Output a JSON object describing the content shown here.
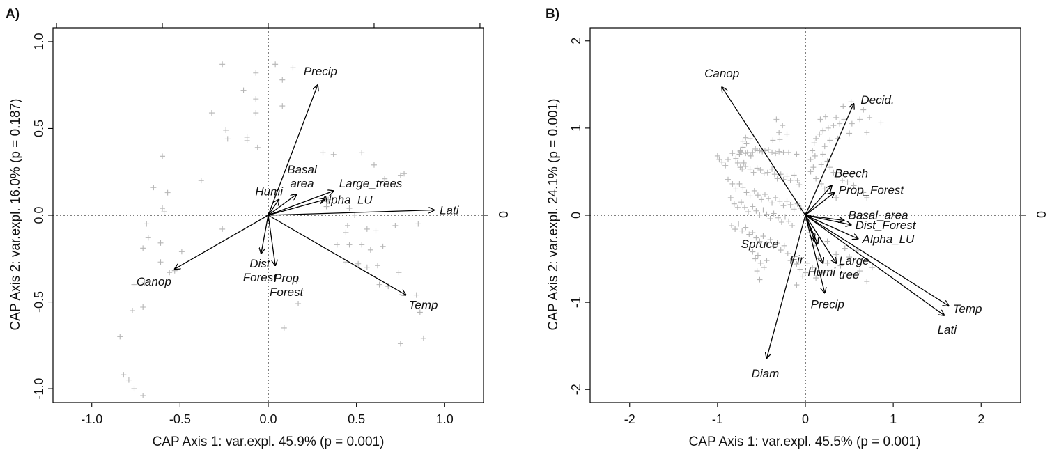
{
  "panels": [
    {
      "letter": "A)",
      "xlabel": "CAP Axis 1: var.expl. 45.9% (p = 0.001)",
      "ylabel": "CAP Axis 2: var.expl. 16.0% (p = 0.187)",
      "right_label": "0",
      "xlim": [
        -1.22,
        1.22
      ],
      "ylim": [
        -1.08,
        1.08
      ],
      "xticks": [
        -1.0,
        -0.5,
        0.0,
        0.5,
        1.0
      ],
      "xtick_labels": [
        "-1.0",
        "-0.5",
        "0.0",
        "0.5",
        "1.0"
      ],
      "yticks": [
        -1.0,
        -0.5,
        0.0,
        0.5,
        1.0
      ],
      "ytick_labels": [
        "-1.0",
        "-0.5",
        "0.0",
        "0.5",
        "1.0"
      ],
      "top_ticks": [
        -1.2,
        -0.6,
        0.0,
        0.6,
        1.2
      ]
    },
    {
      "letter": "B)",
      "xlabel": "CAP Axis 1: var.expl. 45.5% (p = 0.001)",
      "ylabel": "CAP Axis 2: var.expl. 24.1% (p = 0.001)",
      "right_label": "0",
      "xlim": [
        -2.45,
        2.45
      ],
      "ylim": [
        -2.15,
        2.15
      ],
      "xticks": [
        -2,
        -1,
        0,
        1,
        2
      ],
      "xtick_labels": [
        "-2",
        "-1",
        "0",
        "1",
        "2"
      ],
      "yticks": [
        -2,
        -1,
        0,
        1,
        2
      ],
      "ytick_labels": [
        "-2",
        "-1",
        "0",
        "1",
        "2"
      ],
      "top_ticks": []
    }
  ],
  "chart_data": [
    {
      "type": "scatter",
      "title": "",
      "xlabel": "CAP Axis 1: var.expl. 45.9% (p = 0.001)",
      "ylabel": "CAP Axis 2: var.expl. 16.0% (p = 0.187)",
      "xlim": [
        -1.22,
        1.22
      ],
      "ylim": [
        -1.08,
        1.08
      ],
      "grid": false,
      "reference_lines": {
        "x": 0,
        "y": 0
      },
      "point_color": "#b5b5b5",
      "points": [
        [
          -0.26,
          0.87
        ],
        [
          -0.07,
          0.82
        ],
        [
          0.04,
          0.87
        ],
        [
          0.14,
          0.85
        ],
        [
          0.08,
          0.78
        ],
        [
          -0.14,
          0.72
        ],
        [
          -0.07,
          0.67
        ],
        [
          0.08,
          0.63
        ],
        [
          -0.32,
          0.59
        ],
        [
          -0.07,
          0.59
        ],
        [
          -0.24,
          0.49
        ],
        [
          -0.12,
          0.45
        ],
        [
          -0.23,
          0.44
        ],
        [
          -0.12,
          0.43
        ],
        [
          -0.06,
          0.39
        ],
        [
          -0.6,
          0.34
        ],
        [
          -0.38,
          0.2
        ],
        [
          -0.65,
          0.16
        ],
        [
          -0.57,
          0.13
        ],
        [
          -0.6,
          0.04
        ],
        [
          -0.59,
          0.02
        ],
        [
          -0.69,
          -0.05
        ],
        [
          -0.68,
          -0.13
        ],
        [
          -0.26,
          -0.08
        ],
        [
          -0.61,
          -0.16
        ],
        [
          -0.71,
          -0.19
        ],
        [
          -0.49,
          -0.21
        ],
        [
          -0.61,
          -0.27
        ],
        [
          -0.53,
          -0.32
        ],
        [
          -0.56,
          -0.33
        ],
        [
          -0.7,
          -0.39
        ],
        [
          -0.76,
          -0.4
        ],
        [
          -0.71,
          -0.53
        ],
        [
          -0.77,
          -0.55
        ],
        [
          -0.84,
          -0.7
        ],
        [
          -0.82,
          -0.92
        ],
        [
          -0.79,
          -0.95
        ],
        [
          -0.76,
          -1.0
        ],
        [
          -0.71,
          -1.04
        ],
        [
          0.31,
          0.36
        ],
        [
          0.37,
          0.35
        ],
        [
          0.53,
          0.36
        ],
        [
          0.6,
          0.29
        ],
        [
          0.66,
          0.21
        ],
        [
          0.75,
          0.23
        ],
        [
          0.77,
          0.24
        ],
        [
          0.34,
          0.09
        ],
        [
          0.46,
          0.04
        ],
        [
          0.49,
          0.0
        ],
        [
          0.33,
          0.05
        ],
        [
          0.72,
          -0.06
        ],
        [
          0.85,
          -0.05
        ],
        [
          0.44,
          -0.1
        ],
        [
          0.45,
          -0.06
        ],
        [
          0.56,
          -0.08
        ],
        [
          0.61,
          -0.09
        ],
        [
          0.39,
          -0.17
        ],
        [
          0.46,
          -0.17
        ],
        [
          0.53,
          -0.17
        ],
        [
          0.65,
          -0.18
        ],
        [
          0.58,
          -0.2
        ],
        [
          0.44,
          -0.27
        ],
        [
          0.51,
          -0.28
        ],
        [
          0.56,
          -0.3
        ],
        [
          0.62,
          -0.29
        ],
        [
          0.74,
          -0.33
        ],
        [
          0.63,
          -0.4
        ],
        [
          0.68,
          -0.41
        ],
        [
          0.75,
          -0.74
        ],
        [
          0.88,
          -0.71
        ],
        [
          0.86,
          -0.56
        ],
        [
          0.84,
          -0.46
        ],
        [
          0.16,
          -0.38
        ],
        [
          0.17,
          -0.51
        ],
        [
          0.09,
          -0.65
        ]
      ],
      "vectors": [
        {
          "label": "Precip",
          "x": 0.28,
          "y": 0.75
        },
        {
          "label": "Humi",
          "x": 0.06,
          "y": 0.09
        },
        {
          "label": "Basal area",
          "x": 0.16,
          "y": 0.12
        },
        {
          "label": "Large_trees",
          "x": 0.37,
          "y": 0.14
        },
        {
          "label": "Alpha_LU",
          "x": 0.32,
          "y": 0.09
        },
        {
          "label": "Lati",
          "x": 0.94,
          "y": 0.03
        },
        {
          "label": "Temp",
          "x": 0.78,
          "y": -0.46
        },
        {
          "label": "Canop",
          "x": -0.53,
          "y": -0.31
        },
        {
          "label": "Dist Forest",
          "x": -0.04,
          "y": -0.22
        },
        {
          "label": "Prop Forest",
          "x": 0.04,
          "y": -0.29
        }
      ]
    },
    {
      "type": "scatter",
      "title": "",
      "xlabel": "CAP Axis 1: var.expl. 45.5% (p = 0.001)",
      "ylabel": "CAP Axis 2: var.expl. 24.1% (p = 0.001)",
      "xlim": [
        -2.45,
        2.45
      ],
      "ylim": [
        -2.15,
        2.15
      ],
      "grid": false,
      "reference_lines": {
        "x": 0,
        "y": 0
      },
      "point_color": "#b5b5b5",
      "points": [
        [
          -0.33,
          1.1
        ],
        [
          -0.26,
          1.03
        ],
        [
          -0.3,
          0.95
        ],
        [
          -0.21,
          0.93
        ],
        [
          -0.29,
          0.87
        ],
        [
          -0.37,
          0.86
        ],
        [
          -0.68,
          0.89
        ],
        [
          -0.63,
          0.88
        ],
        [
          -0.71,
          0.85
        ],
        [
          -0.67,
          0.82
        ],
        [
          -0.71,
          0.78
        ],
        [
          -0.74,
          0.74
        ],
        [
          -0.74,
          0.73
        ],
        [
          -0.73,
          0.72
        ],
        [
          -0.75,
          0.7
        ],
        [
          -0.66,
          0.72
        ],
        [
          -0.68,
          0.71
        ],
        [
          -0.63,
          0.69
        ],
        [
          -0.62,
          0.68
        ],
        [
          -0.6,
          0.72
        ],
        [
          -0.57,
          0.76
        ],
        [
          -0.55,
          0.74
        ],
        [
          -0.52,
          0.74
        ],
        [
          -0.49,
          0.73
        ],
        [
          -0.46,
          0.74
        ],
        [
          -0.42,
          0.75
        ],
        [
          -0.38,
          0.72
        ],
        [
          -0.34,
          0.71
        ],
        [
          -0.3,
          0.73
        ],
        [
          -0.25,
          0.72
        ],
        [
          -0.19,
          0.72
        ],
        [
          -0.1,
          0.7
        ],
        [
          -1.0,
          0.68
        ],
        [
          -0.98,
          0.64
        ],
        [
          -0.95,
          0.61
        ],
        [
          -0.91,
          0.57
        ],
        [
          -0.88,
          0.64
        ],
        [
          -0.83,
          0.71
        ],
        [
          -0.79,
          0.65
        ],
        [
          -0.77,
          0.6
        ],
        [
          -0.74,
          0.55
        ],
        [
          -0.72,
          0.53
        ],
        [
          -0.7,
          0.6
        ],
        [
          -0.68,
          0.56
        ],
        [
          -0.63,
          0.53
        ],
        [
          -0.59,
          0.49
        ],
        [
          -0.55,
          0.54
        ],
        [
          -0.51,
          0.52
        ],
        [
          -0.47,
          0.48
        ],
        [
          -0.43,
          0.49
        ],
        [
          -0.38,
          0.53
        ],
        [
          -0.35,
          0.47
        ],
        [
          -0.32,
          0.42
        ],
        [
          -0.28,
          0.47
        ],
        [
          -0.25,
          0.41
        ],
        [
          -0.21,
          0.45
        ],
        [
          -0.17,
          0.4
        ],
        [
          -0.13,
          0.46
        ],
        [
          -0.09,
          0.4
        ],
        [
          -0.07,
          0.35
        ],
        [
          -0.88,
          0.41
        ],
        [
          -0.83,
          0.36
        ],
        [
          -0.79,
          0.3
        ],
        [
          -0.75,
          0.36
        ],
        [
          -0.71,
          0.32
        ],
        [
          -0.67,
          0.26
        ],
        [
          -0.63,
          0.22
        ],
        [
          -0.58,
          0.28
        ],
        [
          -0.54,
          0.23
        ],
        [
          -0.5,
          0.18
        ],
        [
          -0.46,
          0.24
        ],
        [
          -0.42,
          0.19
        ],
        [
          -0.38,
          0.14
        ],
        [
          -0.34,
          0.2
        ],
        [
          -0.29,
          0.16
        ],
        [
          -0.25,
          0.11
        ],
        [
          -0.21,
          0.16
        ],
        [
          -0.17,
          0.12
        ],
        [
          -0.13,
          0.07
        ],
        [
          -0.09,
          0.13
        ],
        [
          -0.05,
          0.08
        ],
        [
          -0.85,
          0.2
        ],
        [
          -0.81,
          0.13
        ],
        [
          -0.77,
          0.09
        ],
        [
          -0.73,
          0.15
        ],
        [
          -0.69,
          0.09
        ],
        [
          -0.65,
          0.04
        ],
        [
          -0.6,
          0.1
        ],
        [
          -0.56,
          0.05
        ],
        [
          -0.52,
          0.0
        ],
        [
          -0.48,
          0.06
        ],
        [
          -0.44,
          0.01
        ],
        [
          -0.4,
          -0.04
        ],
        [
          -0.36,
          0.02
        ],
        [
          -0.31,
          -0.03
        ],
        [
          -0.27,
          -0.08
        ],
        [
          -0.23,
          -0.02
        ],
        [
          -0.19,
          -0.07
        ],
        [
          -0.15,
          -0.12
        ],
        [
          -0.84,
          -0.12
        ],
        [
          -0.8,
          -0.16
        ],
        [
          -0.76,
          -0.1
        ],
        [
          -0.72,
          -0.18
        ],
        [
          -0.68,
          -0.14
        ],
        [
          -0.64,
          -0.22
        ],
        [
          -0.6,
          -0.2
        ],
        [
          -0.56,
          -0.26
        ],
        [
          -0.52,
          -0.3
        ],
        [
          -0.48,
          -0.24
        ],
        [
          -0.44,
          -0.33
        ],
        [
          -0.4,
          -0.28
        ],
        [
          -0.36,
          -0.36
        ],
        [
          -0.32,
          -0.32
        ],
        [
          -0.28,
          -0.4
        ],
        [
          -0.24,
          -0.35
        ],
        [
          -0.6,
          -0.42
        ],
        [
          -0.57,
          -0.5
        ],
        [
          -0.54,
          -0.46
        ],
        [
          -0.51,
          -0.55
        ],
        [
          -0.47,
          -0.6
        ],
        [
          -0.44,
          -0.52
        ],
        [
          -0.2,
          -0.44
        ],
        [
          -0.17,
          -0.52
        ],
        [
          -0.13,
          -0.47
        ],
        [
          -0.1,
          -0.56
        ],
        [
          -0.06,
          -0.62
        ],
        [
          -0.03,
          -0.7
        ],
        [
          0.0,
          -0.66
        ],
        [
          -0.55,
          -0.64
        ],
        [
          -0.52,
          -0.74
        ],
        [
          -0.1,
          -0.8
        ],
        [
          0.52,
          1.3
        ],
        [
          0.66,
          1.21
        ],
        [
          0.43,
          1.25
        ],
        [
          0.73,
          1.12
        ],
        [
          0.86,
          1.06
        ],
        [
          0.62,
          1.1
        ],
        [
          0.44,
          1.1
        ],
        [
          0.35,
          1.12
        ],
        [
          0.23,
          1.13
        ],
        [
          0.17,
          1.1
        ],
        [
          0.53,
          1.05
        ],
        [
          0.39,
          1.05
        ],
        [
          0.32,
          1.03
        ],
        [
          0.26,
          1.0
        ],
        [
          0.2,
          0.97
        ],
        [
          0.16,
          0.93
        ],
        [
          0.12,
          0.88
        ],
        [
          0.1,
          0.83
        ],
        [
          0.28,
          0.86
        ],
        [
          0.22,
          0.79
        ],
        [
          0.7,
          0.95
        ],
        [
          0.5,
          0.94
        ],
        [
          0.37,
          0.88
        ],
        [
          0.08,
          0.74
        ],
        [
          0.11,
          0.68
        ],
        [
          0.06,
          0.64
        ],
        [
          0.09,
          0.55
        ],
        [
          0.06,
          0.5
        ],
        [
          0.2,
          0.7
        ],
        [
          0.25,
          0.62
        ],
        [
          0.18,
          0.58
        ],
        [
          0.28,
          0.55
        ],
        [
          0.32,
          0.49
        ],
        [
          0.36,
          0.44
        ],
        [
          0.42,
          0.4
        ],
        [
          0.48,
          0.38
        ],
        [
          0.55,
          0.34
        ],
        [
          0.6,
          0.3
        ],
        [
          0.66,
          0.26
        ],
        [
          0.7,
          0.2
        ],
        [
          0.12,
          0.42
        ],
        [
          0.18,
          0.36
        ],
        [
          0.22,
          0.3
        ],
        [
          0.28,
          0.25
        ],
        [
          0.35,
          0.2
        ],
        [
          0.05,
          -0.2
        ],
        [
          0.1,
          -0.35
        ],
        [
          0.15,
          -0.5
        ],
        [
          0.25,
          -0.55
        ],
        [
          0.3,
          -0.65
        ],
        [
          0.4,
          -0.58
        ],
        [
          0.5,
          -0.48
        ],
        [
          0.55,
          -0.7
        ],
        [
          0.62,
          -0.64
        ],
        [
          0.7,
          -0.76
        ],
        [
          0.2,
          -0.66
        ],
        [
          0.12,
          -0.72
        ],
        [
          0.35,
          -0.45
        ],
        [
          0.45,
          -0.38
        ],
        [
          0.6,
          -0.4
        ],
        [
          0.68,
          -0.52
        ],
        [
          0.76,
          -0.6
        ],
        [
          0.02,
          -0.55
        ],
        [
          0.08,
          -0.6
        ],
        [
          0.25,
          -0.3
        ]
      ],
      "vectors": [
        {
          "label": "Canop",
          "x": -0.95,
          "y": 1.47
        },
        {
          "label": "Decid.",
          "x": 0.55,
          "y": 1.28
        },
        {
          "label": "Beech",
          "x": 0.3,
          "y": 0.34
        },
        {
          "label": "Prop_Forest",
          "x": 0.33,
          "y": 0.26
        },
        {
          "label": "Basal_area",
          "x": 0.44,
          "y": -0.06
        },
        {
          "label": "Dist_Forest",
          "x": 0.52,
          "y": -0.11
        },
        {
          "label": "Alpha_LU",
          "x": 0.6,
          "y": -0.27
        },
        {
          "label": "Large tree",
          "x": 0.35,
          "y": -0.55
        },
        {
          "label": "Humi",
          "x": 0.2,
          "y": -0.55
        },
        {
          "label": "Precip",
          "x": 0.22,
          "y": -0.89
        },
        {
          "label": "Spruce",
          "x": 0.1,
          "y": -0.28
        },
        {
          "label": "Fir",
          "x": 0.14,
          "y": -0.33
        },
        {
          "label": "Temp",
          "x": 1.63,
          "y": -1.04
        },
        {
          "label": "Lati",
          "x": 1.58,
          "y": -1.15
        },
        {
          "label": "Diam",
          "x": -0.44,
          "y": -1.64
        }
      ]
    }
  ]
}
